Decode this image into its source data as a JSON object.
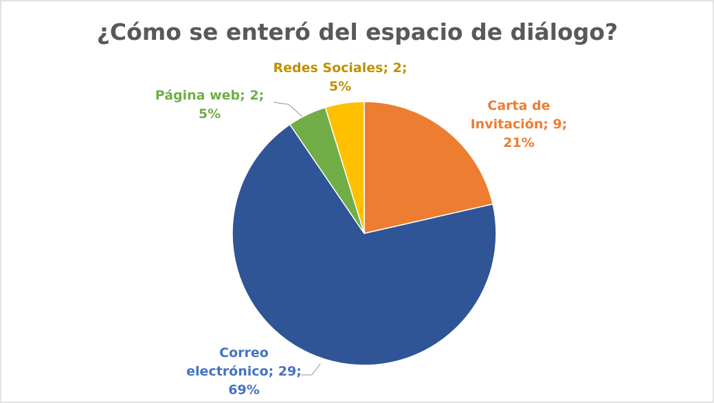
{
  "chart_data": {
    "type": "pie",
    "title": "¿Cómo se enteró del espacio de diálogo?",
    "categories": [
      "Carta de Invitación",
      "Correo electrónico",
      "Página web",
      "Redes Sociales"
    ],
    "values": [
      9,
      29,
      2,
      2
    ],
    "value_labels": [
      [
        "Carta de",
        "Invitación; 9;",
        "21%"
      ],
      [
        "Correo",
        "electrónico; 29;",
        "69%"
      ],
      [
        "Página web; 2;",
        "5%"
      ],
      [
        "Redes Sociales; 2;",
        "5%"
      ]
    ],
    "colors": [
      "#ED7D31",
      "#2F5597",
      "#70AD47",
      "#FFC000"
    ],
    "label_colors": [
      "#ED7D31",
      "#4472C4",
      "#70AD47",
      "#BF9000"
    ]
  }
}
